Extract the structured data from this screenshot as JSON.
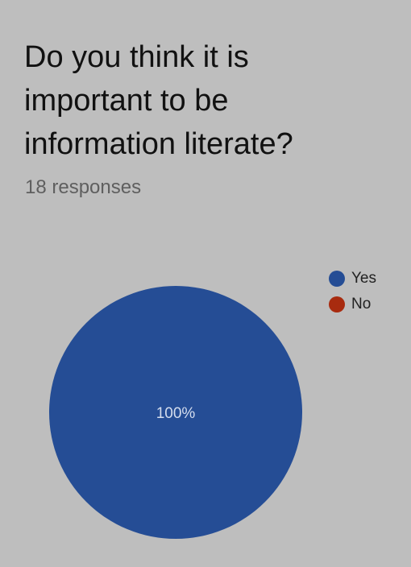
{
  "question": {
    "title_lines": [
      "Do you think it is",
      "important to be",
      "information literate?"
    ],
    "responses": "18 responses"
  },
  "legend": {
    "items": [
      {
        "label": "Yes",
        "color": "#254d95"
      },
      {
        "label": "No",
        "color": "#a82b0f"
      }
    ]
  },
  "chart_data": {
    "type": "pie",
    "categories": [
      "Yes",
      "No"
    ],
    "values": [
      100,
      0
    ],
    "slice_labels": [
      "100%",
      ""
    ],
    "colors": [
      "#254d95",
      "#a82b0f"
    ],
    "legend_position": "top-right"
  }
}
